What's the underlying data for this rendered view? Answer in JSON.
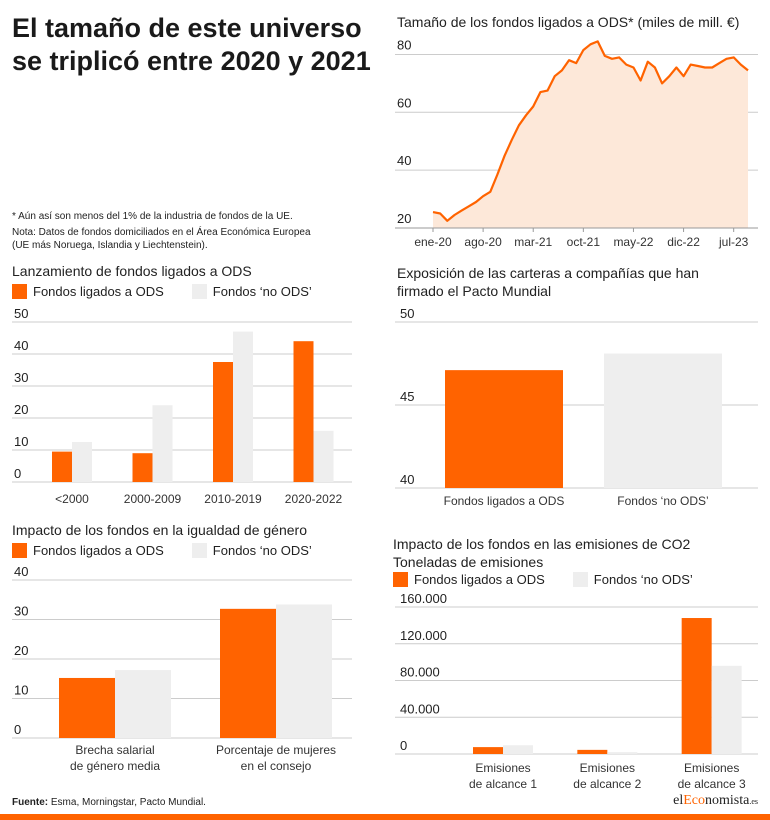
{
  "headline": "El tamaño de este universo se triplicó entre 2020 y 2021",
  "notes": [
    "* Aún así son menos del 1% de la industria de fondos de la UE.",
    "Nota: Datos de fondos domiciliados en el Área Económica Europea",
    "(UE más Noruega, Islandia y Liechtenstein)."
  ],
  "legend": {
    "ods": "Fondos ligados a ODS",
    "no_ods": "Fondos ‘no ODS’"
  },
  "colors": {
    "ods": "#ff6300",
    "no_ods": "#eeeeee",
    "area": "#fde8d9",
    "grid": "#cccccc"
  },
  "footer": {
    "label": "Fuente:",
    "text": "Esma, Morningstar, Pacto Mundial."
  },
  "brand": {
    "pre": "el",
    "accent": "Eco",
    "post": "nomista",
    "suffix": ".es"
  },
  "chart_data": [
    {
      "id": "size",
      "type": "area",
      "title": "Tamaño de los fondos ligados a ODS* (miles de mill. €)",
      "ylim": [
        20,
        85
      ],
      "yticks": [
        20,
        40,
        60,
        80
      ],
      "xticks": [
        "ene-20",
        "ago-20",
        "mar-21",
        "oct-21",
        "may-22",
        "dic-22",
        "jul-23"
      ],
      "values": [
        25.5,
        25,
        22.5,
        24.5,
        26,
        27.5,
        29,
        31,
        32.5,
        38.5,
        45,
        50.5,
        55.5,
        59,
        62,
        67,
        67.5,
        72.5,
        74.5,
        78,
        77,
        81.5,
        83.5,
        84.5,
        79.5,
        78.5,
        79,
        76.5,
        75.5,
        71,
        77.5,
        75.5,
        70,
        72.5,
        75.5,
        72.5,
        76.5,
        76,
        75.5,
        75.5,
        77,
        78.5,
        79,
        76.5,
        74.5
      ]
    },
    {
      "id": "launch",
      "type": "bar",
      "title": "Lanzamiento de fondos ligados a ODS",
      "categories": [
        "<2000",
        "2000-2009",
        "2010-2019",
        "2020-2022"
      ],
      "series": [
        {
          "name": "Fondos ligados a ODS",
          "values": [
            9.5,
            9,
            37.5,
            44
          ]
        },
        {
          "name": "Fondos ‘no ODS’",
          "values": [
            12.5,
            24,
            47,
            16
          ]
        }
      ],
      "ylim": [
        0,
        50
      ],
      "yticks": [
        0,
        10,
        20,
        30,
        40,
        50
      ]
    },
    {
      "id": "exposure",
      "type": "bar",
      "title": "Exposición de las carteras a compañías que han firmado el Pacto Mundial",
      "categories": [
        "Fondos ligados a ODS",
        "Fondos ‘no ODS’"
      ],
      "values": [
        47.1,
        48.1
      ],
      "ylim": [
        40,
        50
      ],
      "yticks": [
        40,
        45,
        50
      ]
    },
    {
      "id": "gender",
      "type": "bar",
      "title": "Impacto de los fondos en la igualdad de género",
      "categories": [
        [
          "Brecha salarial",
          "de género media"
        ],
        [
          "Porcentaje de mujeres",
          "en el consejo"
        ]
      ],
      "series": [
        {
          "name": "Fondos ligados a ODS",
          "values": [
            15.2,
            32.7
          ]
        },
        {
          "name": "Fondos ‘no ODS’",
          "values": [
            17.2,
            33.8
          ]
        }
      ],
      "ylim": [
        0,
        40
      ],
      "yticks": [
        0,
        10,
        20,
        30,
        40
      ]
    },
    {
      "id": "co2",
      "type": "bar",
      "title": "Impacto de los fondos en las emisiones de CO2",
      "subtitle": "Toneladas de emisiones",
      "categories": [
        [
          "Emisiones",
          "de alcance 1"
        ],
        [
          "Emisiones",
          "de alcance 2"
        ],
        [
          "Emisiones",
          "de alcance 3"
        ]
      ],
      "series": [
        {
          "name": "Fondos ligados a ODS",
          "values": [
            7500,
            4500,
            148000
          ]
        },
        {
          "name": "Fondos ‘no ODS’",
          "values": [
            9500,
            2000,
            96000
          ]
        }
      ],
      "ylim": [
        0,
        160000
      ],
      "yticks": [
        0,
        40000,
        80000,
        120000,
        160000
      ],
      "yticklabels": [
        "0",
        "40.000",
        "80.000",
        "120.000",
        "160.000"
      ]
    }
  ]
}
